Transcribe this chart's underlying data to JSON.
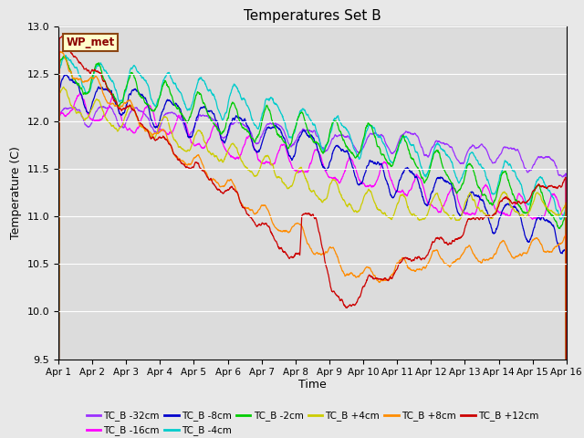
{
  "title": "Temperatures Set B",
  "xlabel": "Time",
  "ylabel": "Temperature (C)",
  "ylim": [
    9.5,
    13.0
  ],
  "xlim": [
    0,
    15
  ],
  "xtick_labels": [
    "Apr 1",
    "Apr 2",
    "Apr 3",
    "Apr 4",
    "Apr 5",
    "Apr 6",
    "Apr 7",
    "Apr 8",
    "Apr 9",
    "Apr 10",
    "Apr 11",
    "Apr 12",
    "Apr 13",
    "Apr 14",
    "Apr 15",
    "Apr 16"
  ],
  "ytick_vals": [
    9.5,
    10.0,
    10.5,
    11.0,
    11.5,
    12.0,
    12.5,
    13.0
  ],
  "series": [
    {
      "label": "TC_B -32cm",
      "color": "#9B30FF"
    },
    {
      "label": "TC_B -16cm",
      "color": "#FF00FF"
    },
    {
      "label": "TC_B -8cm",
      "color": "#0000CC"
    },
    {
      "label": "TC_B -4cm",
      "color": "#00CCCC"
    },
    {
      "label": "TC_B -2cm",
      "color": "#00CC00"
    },
    {
      "label": "TC_B +4cm",
      "color": "#CCCC00"
    },
    {
      "label": "TC_B +8cm",
      "color": "#FF8C00"
    },
    {
      "label": "TC_B +12cm",
      "color": "#CC0000"
    }
  ],
  "wp_met_label": "WP_met",
  "bg_color": "#E8E8E8",
  "plot_bg": "#DCDCDC"
}
